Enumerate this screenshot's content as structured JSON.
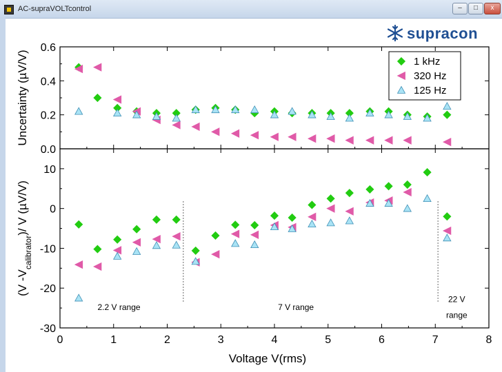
{
  "window": {
    "title": "AC-supraVOLTcontrol",
    "buttons": {
      "minimize": "–",
      "maximize": "□",
      "close": "x"
    }
  },
  "logo": {
    "text": "supracon",
    "icon": "snowflake-icon",
    "color": "#1f4f93"
  },
  "chart_data": [
    {
      "type": "scatter",
      "title": "",
      "xlabel": "",
      "ylabel": "Uncertainty (µV/V)",
      "xlim": [
        0,
        8
      ],
      "ylim": [
        0.0,
        0.6
      ],
      "x_ticks": [
        0,
        1,
        2,
        3,
        4,
        5,
        6,
        7,
        8
      ],
      "y_ticks": [
        "0.0",
        "0.2",
        "0.4",
        "0.6"
      ],
      "legend": {
        "position": "top-right",
        "entries": [
          "1 kHz",
          "320 Hz",
          "125 Hz"
        ]
      },
      "series": [
        {
          "name": "1 kHz",
          "marker": "diamond",
          "color": "#22cc11",
          "points": [
            [
              0.35,
              0.48
            ],
            [
              0.7,
              0.3
            ],
            [
              1.07,
              0.24
            ],
            [
              1.43,
              0.22
            ],
            [
              1.8,
              0.21
            ],
            [
              2.17,
              0.21
            ],
            [
              2.53,
              0.23
            ],
            [
              2.9,
              0.24
            ],
            [
              3.27,
              0.23
            ],
            [
              3.63,
              0.21
            ],
            [
              4.0,
              0.22
            ],
            [
              4.33,
              0.21
            ],
            [
              4.7,
              0.21
            ],
            [
              5.05,
              0.21
            ],
            [
              5.4,
              0.21
            ],
            [
              5.78,
              0.22
            ],
            [
              6.13,
              0.22
            ],
            [
              6.48,
              0.2
            ],
            [
              6.85,
              0.19
            ],
            [
              7.22,
              0.2
            ]
          ]
        },
        {
          "name": "320 Hz",
          "marker": "triangle-left",
          "color": "#e05aa8",
          "points": [
            [
              0.35,
              0.47
            ],
            [
              0.7,
              0.48
            ],
            [
              1.07,
              0.29
            ],
            [
              1.43,
              0.22
            ],
            [
              1.8,
              0.17
            ],
            [
              2.17,
              0.14
            ],
            [
              2.53,
              0.13
            ],
            [
              2.9,
              0.1
            ],
            [
              3.27,
              0.09
            ],
            [
              3.63,
              0.08
            ],
            [
              4.0,
              0.07
            ],
            [
              4.33,
              0.07
            ],
            [
              4.7,
              0.06
            ],
            [
              5.05,
              0.06
            ],
            [
              5.4,
              0.05
            ],
            [
              5.78,
              0.05
            ],
            [
              6.13,
              0.05
            ],
            [
              6.48,
              0.05
            ],
            [
              7.22,
              0.04
            ]
          ]
        },
        {
          "name": "125 Hz",
          "marker": "triangle-up",
          "color": "#66ccee",
          "points": [
            [
              0.35,
              0.22
            ],
            [
              1.07,
              0.21
            ],
            [
              1.43,
              0.2
            ],
            [
              1.8,
              0.19
            ],
            [
              2.17,
              0.18
            ],
            [
              2.53,
              0.23
            ],
            [
              2.9,
              0.23
            ],
            [
              3.27,
              0.23
            ],
            [
              3.63,
              0.23
            ],
            [
              4.0,
              0.2
            ],
            [
              4.33,
              0.22
            ],
            [
              4.7,
              0.2
            ],
            [
              5.05,
              0.19
            ],
            [
              5.4,
              0.18
            ],
            [
              5.78,
              0.21
            ],
            [
              6.13,
              0.2
            ],
            [
              6.48,
              0.19
            ],
            [
              6.85,
              0.18
            ],
            [
              7.22,
              0.25
            ]
          ]
        }
      ]
    },
    {
      "type": "scatter",
      "title": "",
      "xlabel": "Voltage  V(rms)",
      "ylabel": "(V -V",
      "ylabel_sub": "calibrator",
      "ylabel_tail": ")/ V  (µV/V)",
      "xlim": [
        0,
        8
      ],
      "ylim": [
        -30,
        15
      ],
      "x_ticks": [
        0,
        1,
        2,
        3,
        4,
        5,
        6,
        7,
        8
      ],
      "y_ticks": [
        -30,
        -20,
        -10,
        0,
        10
      ],
      "range_dividers": [
        2.3,
        7.05
      ],
      "range_labels": [
        {
          "text": "2.2 V range",
          "x": 1.1,
          "y": -25.5
        },
        {
          "text": "7 V range",
          "x": 4.4,
          "y": -25.5
        },
        {
          "text": "22 V",
          "x": 7.4,
          "y": -23.5
        },
        {
          "text": "range",
          "x": 7.4,
          "y": -27.5
        }
      ],
      "series": [
        {
          "name": "1 kHz",
          "marker": "diamond",
          "color": "#22cc11",
          "points": [
            [
              0.35,
              -4.0
            ],
            [
              0.7,
              -10.2
            ],
            [
              1.07,
              -7.8
            ],
            [
              1.43,
              -5.2
            ],
            [
              1.8,
              -2.8
            ],
            [
              2.17,
              -2.8
            ],
            [
              2.53,
              -10.6
            ],
            [
              2.9,
              -6.8
            ],
            [
              3.27,
              -4.1
            ],
            [
              3.63,
              -4.2
            ],
            [
              4.0,
              -1.8
            ],
            [
              4.33,
              -2.3
            ],
            [
              4.7,
              0.9
            ],
            [
              5.05,
              2.5
            ],
            [
              5.4,
              3.9
            ],
            [
              5.78,
              4.8
            ],
            [
              6.13,
              5.6
            ],
            [
              6.48,
              6.0
            ],
            [
              6.85,
              9.1
            ],
            [
              7.22,
              -2.0
            ]
          ]
        },
        {
          "name": "320 Hz",
          "marker": "triangle-left",
          "color": "#e05aa8",
          "points": [
            [
              0.35,
              -14.1
            ],
            [
              0.7,
              -14.6
            ],
            [
              1.07,
              -10.5
            ],
            [
              1.43,
              -8.5
            ],
            [
              1.8,
              -7.7
            ],
            [
              2.17,
              -7.0
            ],
            [
              2.53,
              -13.5
            ],
            [
              2.9,
              -11.5
            ],
            [
              3.27,
              -6.4
            ],
            [
              3.63,
              -6.6
            ],
            [
              4.0,
              -4.2
            ],
            [
              4.33,
              -4.7
            ],
            [
              4.7,
              -2.1
            ],
            [
              5.05,
              0.0
            ],
            [
              5.4,
              -0.7
            ],
            [
              5.78,
              1.5
            ],
            [
              6.13,
              2.0
            ],
            [
              6.48,
              4.1
            ],
            [
              7.22,
              -5.6
            ]
          ]
        },
        {
          "name": "125 Hz",
          "marker": "triangle-up",
          "color": "#66ccee",
          "points": [
            [
              0.35,
              -22.5
            ],
            [
              1.07,
              -12.0
            ],
            [
              1.43,
              -10.8
            ],
            [
              1.8,
              -9.3
            ],
            [
              2.17,
              -9.2
            ],
            [
              2.53,
              -13.3
            ],
            [
              3.27,
              -8.8
            ],
            [
              3.63,
              -9.1
            ],
            [
              4.0,
              -4.6
            ],
            [
              4.33,
              -5.1
            ],
            [
              4.7,
              -3.9
            ],
            [
              5.05,
              -3.6
            ],
            [
              5.4,
              -3.1
            ],
            [
              5.78,
              1.3
            ],
            [
              6.13,
              1.3
            ],
            [
              6.48,
              0.0
            ],
            [
              6.85,
              2.5
            ],
            [
              7.22,
              -7.4
            ]
          ]
        }
      ]
    }
  ]
}
